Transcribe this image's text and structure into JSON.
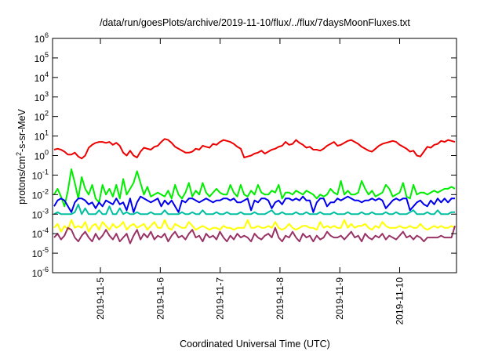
{
  "chart_data": {
    "type": "line",
    "title": "/data/run/goesPlots/archive/2019-11-10/flux/../flux/7daysMoonFluxes.txt",
    "xlabel": "Coordinated Universal Time (UTC)",
    "ylabel": {
      "prefix": "protons/cm",
      "sup": "2",
      "suffix": "-s-sr-MeV"
    },
    "y_scale": "log",
    "y_exp_range": [
      -6,
      6
    ],
    "y_ticks": [
      {
        "base": "10",
        "exp": "-6",
        "v": -6
      },
      {
        "base": "10",
        "exp": "-5",
        "v": -5
      },
      {
        "base": "10",
        "exp": "-4",
        "v": -4
      },
      {
        "base": "10",
        "exp": "-3",
        "v": -3
      },
      {
        "base": "10",
        "exp": "-2",
        "v": -2
      },
      {
        "base": "10",
        "exp": "-1",
        "v": -1
      },
      {
        "base": "10",
        "exp": "0",
        "v": 0
      },
      {
        "base": "10",
        "exp": "1",
        "v": 1
      },
      {
        "base": "10",
        "exp": "2",
        "v": 2
      },
      {
        "base": "10",
        "exp": "3",
        "v": 3
      },
      {
        "base": "10",
        "exp": "4",
        "v": 4
      },
      {
        "base": "10",
        "exp": "5",
        "v": 5
      },
      {
        "base": "10",
        "exp": "6",
        "v": 6
      }
    ],
    "x_range_days": [
      4.2,
      10.95
    ],
    "x_ticks": [
      {
        "label": "2019-11-5",
        "day": 5
      },
      {
        "label": "2019-11-6",
        "day": 6
      },
      {
        "label": "2019-11-7",
        "day": 7
      },
      {
        "label": "2019-11-8",
        "day": 8
      },
      {
        "label": "2019-11-9",
        "day": 9
      },
      {
        "label": "2019-11-10",
        "day": 10
      }
    ],
    "grid": false,
    "series": [
      {
        "color": "#ee0000",
        "values": [
          0.3,
          0.35,
          0.3,
          0.2,
          0.05,
          0.05,
          0.15,
          -0.05,
          -0.15,
          0.0,
          0.4,
          0.55,
          0.65,
          0.7,
          0.7,
          0.65,
          0.7,
          0.55,
          0.65,
          0.5,
          0.15,
          0.0,
          0.25,
          0.0,
          -0.1,
          0.2,
          0.4,
          0.35,
          0.3,
          0.45,
          0.5,
          0.7,
          0.85,
          0.8,
          0.65,
          0.45,
          0.35,
          0.25,
          0.15,
          0.15,
          0.2,
          0.35,
          0.3,
          0.5,
          0.45,
          0.4,
          0.6,
          0.55,
          0.7,
          0.8,
          0.75,
          0.7,
          0.6,
          0.45,
          0.35,
          -0.1,
          -0.05,
          0.0,
          0.1,
          0.15,
          0.25,
          0.1,
          0.2,
          0.3,
          0.35,
          0.45,
          0.5,
          0.7,
          0.55,
          0.6,
          0.8,
          0.65,
          0.55,
          0.4,
          0.45,
          0.3,
          0.3,
          0.25,
          0.35,
          0.5,
          0.6,
          0.7,
          0.5,
          0.55,
          0.65,
          0.75,
          0.8,
          0.7,
          0.6,
          0.45,
          0.35,
          0.25,
          0.2,
          0.35,
          0.5,
          0.6,
          0.65,
          0.7,
          0.75,
          0.7,
          0.55,
          0.45,
          0.35,
          0.2,
          0.25,
          0.0,
          -0.05,
          0.2,
          0.45,
          0.4,
          0.55,
          0.6,
          0.75,
          0.7,
          0.8,
          0.75,
          0.7
        ]
      },
      {
        "color": "#00ee00",
        "values": [
          -2.0,
          -1.7,
          -2.1,
          -2.6,
          -1.8,
          -0.7,
          -1.4,
          -2.2,
          -1.1,
          -1.7,
          -2.0,
          -1.5,
          -2.2,
          -2.4,
          -1.5,
          -2.0,
          -1.7,
          -2.1,
          -1.5,
          -2.2,
          -1.2,
          -2.0,
          -1.7,
          -1.4,
          -0.8,
          -1.4,
          -2.0,
          -1.6,
          -2.1,
          -2.0,
          -1.9,
          -2.0,
          -2.1,
          -1.8,
          -2.2,
          -1.5,
          -2.0,
          -2.2,
          -1.9,
          -1.4,
          -2.1,
          -1.8,
          -2.0,
          -1.4,
          -1.9,
          -2.1,
          -1.9,
          -1.7,
          -1.9,
          -2.0,
          -2.0,
          -1.5,
          -1.9,
          -2.1,
          -1.5,
          -2.0,
          -2.1,
          -1.8,
          -2.0,
          -1.5,
          -1.9,
          -2.0,
          -2.0,
          -1.8,
          -1.9,
          -1.5,
          -2.2,
          -1.9,
          -1.9,
          -2.0,
          -1.8,
          -1.9,
          -2.0,
          -1.8,
          -1.9,
          -2.0,
          -2.2,
          -2.0,
          -2.1,
          -2.0,
          -1.7,
          -1.9,
          -2.0,
          -1.3,
          -2.0,
          -1.8,
          -2.0,
          -2.0,
          -1.9,
          -1.3,
          -1.7,
          -2.0,
          -1.8,
          -2.1,
          -2.0,
          -1.9,
          -1.5,
          -1.7,
          -2.1,
          -2.0,
          -1.9,
          -1.4,
          -2.1,
          -2.2,
          -1.5,
          -2.0,
          -1.9,
          -1.9,
          -2.0,
          -1.9,
          -1.8,
          -1.9,
          -1.8,
          -1.7,
          -1.7,
          -1.6,
          -1.7
        ]
      },
      {
        "color": "#0000ee",
        "values": [
          -2.6,
          -2.3,
          -2.2,
          -2.3,
          -2.6,
          -2.9,
          -2.4,
          -2.2,
          -2.2,
          -2.3,
          -2.5,
          -2.4,
          -2.7,
          -2.4,
          -2.6,
          -2.3,
          -2.4,
          -2.5,
          -2.2,
          -2.5,
          -2.4,
          -2.8,
          -2.2,
          -2.9,
          -2.4,
          -2.1,
          -2.2,
          -2.3,
          -2.4,
          -2.3,
          -2.2,
          -2.6,
          -2.3,
          -2.5,
          -2.3,
          -2.6,
          -2.9,
          -2.3,
          -2.4,
          -2.2,
          -2.2,
          -2.3,
          -2.4,
          -2.3,
          -2.2,
          -2.3,
          -2.4,
          -2.3,
          -2.3,
          -2.2,
          -2.2,
          -2.3,
          -2.2,
          -2.4,
          -2.4,
          -2.3,
          -2.2,
          -2.8,
          -2.3,
          -2.4,
          -2.2,
          -2.2,
          -2.3,
          -2.7,
          -2.4,
          -2.3,
          -2.5,
          -2.2,
          -2.2,
          -2.3,
          -2.2,
          -2.3,
          -2.1,
          -2.3,
          -2.3,
          -2.9,
          -2.4,
          -2.2,
          -2.2,
          -2.6,
          -2.4,
          -2.4,
          -2.2,
          -2.3,
          -2.2,
          -2.1,
          -2.2,
          -2.3,
          -2.3,
          -2.4,
          -2.3,
          -2.3,
          -2.2,
          -2.3,
          -2.2,
          -2.3,
          -2.7,
          -2.5,
          -2.3,
          -2.2,
          -2.3,
          -2.2,
          -2.2,
          -2.8,
          -2.6,
          -2.4,
          -2.3,
          -2.5,
          -2.6,
          -2.3,
          -2.5,
          -2.2,
          -2.4,
          -2.2,
          -2.4,
          -2.2,
          -2.2
        ]
      },
      {
        "color": "#00c0a0",
        "values": [
          -3.0,
          -2.9,
          -3.0,
          -3.0,
          -3.0,
          -3.0,
          -2.9,
          -2.5,
          -3.0,
          -2.7,
          -3.0,
          -3.0,
          -3.0,
          -2.8,
          -3.0,
          -3.0,
          -2.6,
          -3.0,
          -3.0,
          -2.7,
          -3.0,
          -2.9,
          -3.0,
          -3.0,
          -2.9,
          -3.0,
          -3.0,
          -3.0,
          -2.9,
          -3.0,
          -3.0,
          -3.0,
          -2.8,
          -3.0,
          -3.0,
          -3.0,
          -3.0,
          -2.9,
          -3.0,
          -3.0,
          -2.9,
          -3.0,
          -3.0,
          -2.8,
          -3.0,
          -3.0,
          -3.0,
          -2.9,
          -3.0,
          -3.0,
          -2.9,
          -3.0,
          -3.0,
          -3.0,
          -2.9,
          -3.0,
          -3.0,
          -3.0,
          -2.9,
          -3.0,
          -3.0,
          -3.0,
          -2.9,
          -2.8,
          -3.0,
          -3.0,
          -2.9,
          -3.0,
          -3.0,
          -3.0,
          -2.9,
          -3.0,
          -3.0,
          -2.9,
          -3.0,
          -3.0,
          -3.0,
          -2.9,
          -3.0,
          -3.0,
          -3.0,
          -2.9,
          -3.0,
          -3.0,
          -3.0,
          -2.9,
          -3.0,
          -3.0,
          -3.0,
          -2.9,
          -3.0,
          -3.0,
          -2.9,
          -3.0,
          -3.0,
          -3.0,
          -2.9,
          -3.0,
          -3.0,
          -2.9,
          -3.0,
          -3.0,
          -3.0,
          -2.9,
          -2.8,
          -3.0,
          -3.0,
          -3.0,
          -2.9,
          -3.0,
          -3.0,
          -2.8,
          -3.0,
          -3.0,
          -3.0,
          -2.9,
          -2.9
        ]
      },
      {
        "color": "#ffff00",
        "values": [
          -3.7,
          -3.5,
          -3.9,
          -3.6,
          -3.8,
          -3.3,
          -3.7,
          -3.6,
          -3.7,
          -3.4,
          -3.9,
          -3.6,
          -3.5,
          -3.8,
          -3.4,
          -3.6,
          -3.8,
          -3.5,
          -3.7,
          -3.6,
          -3.4,
          -3.8,
          -3.6,
          -3.5,
          -3.7,
          -3.6,
          -3.5,
          -3.8,
          -3.6,
          -3.4,
          -3.7,
          -3.7,
          -3.3,
          -3.7,
          -3.8,
          -3.5,
          -3.6,
          -3.7,
          -3.7,
          -3.4,
          -3.6,
          -3.8,
          -3.7,
          -3.6,
          -3.7,
          -3.8,
          -3.7,
          -3.7,
          -3.8,
          -3.6,
          -3.7,
          -3.7,
          -3.8,
          -3.7,
          -3.7,
          -3.7,
          -3.3,
          -3.7,
          -3.7,
          -3.6,
          -3.7,
          -3.7,
          -3.6,
          -3.7,
          -3.4,
          -3.7,
          -3.8,
          -3.7,
          -3.5,
          -3.7,
          -3.8,
          -3.7,
          -3.6,
          -3.6,
          -3.7,
          -3.7,
          -3.8,
          -3.4,
          -3.7,
          -3.6,
          -3.7,
          -3.6,
          -3.7,
          -3.7,
          -3.3,
          -3.7,
          -3.5,
          -3.7,
          -3.6,
          -3.6,
          -3.5,
          -3.7,
          -3.8,
          -3.6,
          -3.7,
          -3.4,
          -3.6,
          -3.7,
          -3.7,
          -3.7,
          -3.6,
          -3.7,
          -3.7,
          -3.6,
          -3.7,
          -3.7,
          -3.5,
          -3.7,
          -3.8,
          -3.7,
          -3.6,
          -3.7,
          -3.6,
          -3.7,
          -3.7,
          -3.6,
          -3.7
        ]
      },
      {
        "color": "#993366",
        "values": [
          -4.2,
          -4.0,
          -4.3,
          -4.1,
          -3.7,
          -3.8,
          -4.2,
          -4.4,
          -4.1,
          -3.9,
          -4.2,
          -4.4,
          -4.0,
          -4.3,
          -4.1,
          -3.8,
          -4.1,
          -4.3,
          -4.0,
          -4.4,
          -4.2,
          -4.0,
          -4.5,
          -4.1,
          -3.8,
          -4.3,
          -4.0,
          -4.2,
          -3.9,
          -4.3,
          -4.1,
          -4.2,
          -4.0,
          -4.4,
          -4.1,
          -3.9,
          -4.2,
          -4.1,
          -4.3,
          -4.0,
          -3.8,
          -4.2,
          -4.1,
          -4.4,
          -4.0,
          -4.2,
          -4.1,
          -4.3,
          -3.9,
          -4.2,
          -4.4,
          -4.1,
          -4.3,
          -4.0,
          -4.2,
          -4.1,
          -4.2,
          -4.4,
          -4.0,
          -4.2,
          -4.3,
          -4.1,
          -4.0,
          -4.2,
          -3.7,
          -4.2,
          -4.4,
          -4.1,
          -4.2,
          -3.9,
          -4.2,
          -4.4,
          -4.0,
          -4.2,
          -4.1,
          -4.4,
          -4.1,
          -4.3,
          -4.2,
          -3.9,
          -4.1,
          -4.2,
          -4.2,
          -4.1,
          -4.3,
          -4.1,
          -3.9,
          -4.2,
          -4.1,
          -4.4,
          -4.0,
          -4.2,
          -4.3,
          -4.1,
          -4.2,
          -4.0,
          -4.3,
          -4.1,
          -4.2,
          -4.3,
          -4.1,
          -3.9,
          -4.2,
          -4.1,
          -4.3,
          -4.1,
          -4.2,
          -4.4,
          -4.2,
          -4.2,
          -4.2,
          -4.2,
          -4.1,
          -4.2,
          -4.2,
          -4.2,
          -3.6
        ]
      }
    ]
  }
}
